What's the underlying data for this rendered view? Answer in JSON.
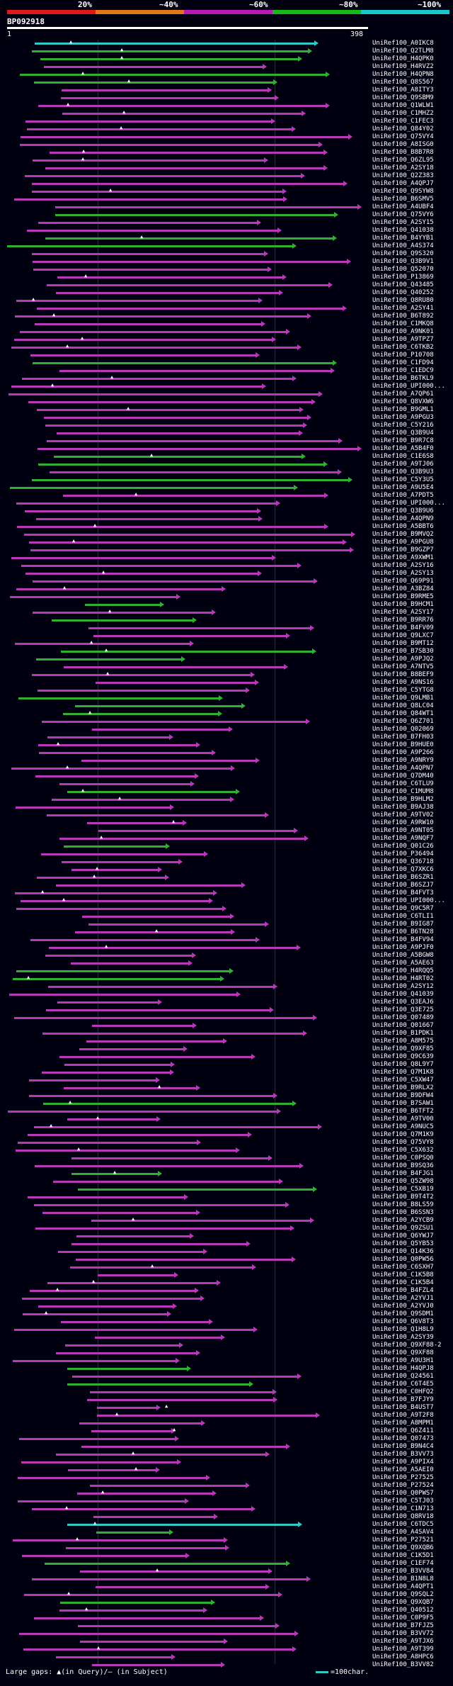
{
  "legend": {
    "labels": [
      "20%",
      "~40%",
      "~60%",
      "~80%",
      "~100%"
    ],
    "colors": [
      "#e01818",
      "#e07818",
      "#b818b8",
      "#18b818",
      "#18c8c8"
    ]
  },
  "query": {
    "id": "BP092918",
    "start": "1",
    "end": "398"
  },
  "footer": {
    "gaps_text": "Large gaps: ▲(in Query)/– (in Subject)",
    "scale_text": "=100char."
  },
  "hits": [
    {
      "label": "UniRef100_A0IKC8",
      "c": "cyan"
    },
    {
      "label": "UniRef100_Q2TLM8",
      "c": "green"
    },
    {
      "label": "UniRef100_H4QPK0",
      "c": "green"
    },
    {
      "label": "UniRef100_H4RVZ2",
      "c": "magenta"
    },
    {
      "label": "UniRef100_H4QPN8",
      "c": "green"
    },
    {
      "label": "UniRef100_Q8S567",
      "c": "green"
    },
    {
      "label": "UniRef100_A8ITY3",
      "c": "magenta"
    },
    {
      "label": "UniRef100_Q9SBM9",
      "c": "magenta"
    },
    {
      "label": "UniRef100_Q1WLW1",
      "c": "magenta"
    },
    {
      "label": "UniRef100_C1MHZ2",
      "c": "magenta"
    },
    {
      "label": "UniRef100_C1FEC3",
      "c": "magenta"
    },
    {
      "label": "UniRef100_Q84Y02",
      "c": "magenta"
    },
    {
      "label": "UniRef100_Q75VY4",
      "c": "magenta"
    },
    {
      "label": "UniRef100_A8ISG0",
      "c": "magenta"
    },
    {
      "label": "UniRef100_B8B7R8",
      "c": "magenta"
    },
    {
      "label": "UniRef100_Q6ZL95",
      "c": "magenta"
    },
    {
      "label": "UniRef100_A2SY18",
      "c": "magenta"
    },
    {
      "label": "UniRef100_Q2Z383",
      "c": "magenta"
    },
    {
      "label": "UniRef100_A4QPJ7",
      "c": "magenta"
    },
    {
      "label": "UniRef100_Q9SYW8",
      "c": "magenta"
    },
    {
      "label": "UniRef100_B6SMV5",
      "c": "magenta"
    },
    {
      "label": "UniRef100_A4UBF4",
      "c": "magenta"
    },
    {
      "label": "UniRef100_Q75VY6",
      "c": "green"
    },
    {
      "label": "UniRef100_A2SY15",
      "c": "magenta"
    },
    {
      "label": "UniRef100_Q41038",
      "c": "magenta"
    },
    {
      "label": "UniRef100_B4YYB1",
      "c": "green"
    },
    {
      "label": "UniRef100_A4S374",
      "c": "green"
    },
    {
      "label": "UniRef100_Q9S320",
      "c": "magenta"
    },
    {
      "label": "UniRef100_Q3B9V1",
      "c": "magenta"
    },
    {
      "label": "UniRef100_Q52070",
      "c": "magenta"
    },
    {
      "label": "UniRef100_P13869",
      "c": "magenta"
    },
    {
      "label": "UniRef100_Q43485",
      "c": "magenta"
    },
    {
      "label": "UniRef100_Q40252",
      "c": "magenta"
    },
    {
      "label": "UniRef100_Q8RU80",
      "c": "magenta"
    },
    {
      "label": "UniRef100_A2SY41",
      "c": "magenta"
    },
    {
      "label": "UniRef100_B6T892",
      "c": "magenta"
    },
    {
      "label": "UniRef100_C1MKQ8",
      "c": "magenta"
    },
    {
      "label": "UniRef100_A9NK01",
      "c": "magenta"
    },
    {
      "label": "UniRef100_A9TPZ7",
      "c": "magenta"
    },
    {
      "label": "UniRef100_C6TKB2",
      "c": "magenta"
    },
    {
      "label": "UniRef100_P10708",
      "c": "magenta"
    },
    {
      "label": "UniRef100_C1FD94",
      "c": "green"
    },
    {
      "label": "UniRef100_C1EDC9",
      "c": "magenta"
    },
    {
      "label": "UniRef100_B6TKL9",
      "c": "magenta"
    },
    {
      "label": "UniRef100_UPI000...",
      "c": "magenta"
    },
    {
      "label": "UniRef100_A7QP61",
      "c": "magenta"
    },
    {
      "label": "UniRef100_Q8VXW6",
      "c": "magenta"
    },
    {
      "label": "UniRef100_B9GML1",
      "c": "magenta"
    },
    {
      "label": "UniRef100_A9PGU3",
      "c": "magenta"
    },
    {
      "label": "UniRef100_C5Y216",
      "c": "magenta"
    },
    {
      "label": "UniRef100_Q3B9U4",
      "c": "magenta"
    },
    {
      "label": "UniRef100_B9R7C8",
      "c": "magenta"
    },
    {
      "label": "UniRef100_A5B4F0",
      "c": "magenta"
    },
    {
      "label": "UniRef100_C1E6S8",
      "c": "green"
    },
    {
      "label": "UniRef100_A9TJ06",
      "c": "green"
    },
    {
      "label": "UniRef100_Q3B9U3",
      "c": "magenta"
    },
    {
      "label": "UniRef100_C5Y3U5",
      "c": "green"
    },
    {
      "label": "UniRef100_A9U5E4",
      "c": "green"
    },
    {
      "label": "UniRef100_A7PDT5",
      "c": "magenta"
    },
    {
      "label": "UniRef100_UPI000...",
      "c": "magenta"
    },
    {
      "label": "UniRef100_Q3B9U6",
      "c": "magenta"
    },
    {
      "label": "UniRef100_A4QPN9",
      "c": "magenta"
    },
    {
      "label": "UniRef100_A5BBT6",
      "c": "magenta"
    },
    {
      "label": "UniRef100_B9MVQ2",
      "c": "magenta"
    },
    {
      "label": "UniRef100_A9PGU8",
      "c": "magenta"
    },
    {
      "label": "UniRef100_B9GZP7",
      "c": "magenta"
    },
    {
      "label": "UniRef100_A9XWM1",
      "c": "magenta"
    },
    {
      "label": "UniRef100_A2SY16",
      "c": "magenta"
    },
    {
      "label": "UniRef100_A2SY13",
      "c": "magenta"
    },
    {
      "label": "UniRef100_Q69P91",
      "c": "magenta"
    },
    {
      "label": "UniRef100_A3BZ84",
      "c": "magenta"
    },
    {
      "label": "UniRef100_B9RME5",
      "c": "magenta"
    },
    {
      "label": "UniRef100_B9HCM1",
      "c": "green"
    },
    {
      "label": "UniRef100_A2SY17",
      "c": "magenta"
    },
    {
      "label": "UniRef100_B9RR76",
      "c": "green"
    },
    {
      "label": "UniRef100_B4FV09",
      "c": "magenta"
    },
    {
      "label": "UniRef100_Q9LXC7",
      "c": "magenta"
    },
    {
      "label": "UniRef100_B9MT12",
      "c": "magenta"
    },
    {
      "label": "UniRef100_B7SB30",
      "c": "green"
    },
    {
      "label": "UniRef100_A9PJQ2",
      "c": "green"
    },
    {
      "label": "UniRef100_A7NTV5",
      "c": "magenta"
    },
    {
      "label": "UniRef100_B8BEF9",
      "c": "magenta"
    },
    {
      "label": "UniRef100_A9NS16",
      "c": "magenta"
    },
    {
      "label": "UniRef100_C5YTG8",
      "c": "magenta"
    },
    {
      "label": "UniRef100_Q9LMB1",
      "c": "green"
    },
    {
      "label": "UniRef100_Q8LC04",
      "c": "green"
    },
    {
      "label": "UniRef100_Q84WT1",
      "c": "green"
    },
    {
      "label": "UniRef100_Q6Z701",
      "c": "magenta"
    },
    {
      "label": "UniRef100_Q02069",
      "c": "magenta"
    },
    {
      "label": "UniRef100_B7FH03",
      "c": "magenta"
    },
    {
      "label": "UniRef100_B9HUE0",
      "c": "magenta"
    },
    {
      "label": "UniRef100_A9P266",
      "c": "magenta"
    },
    {
      "label": "UniRef100_A9NRY9",
      "c": "magenta"
    },
    {
      "label": "UniRef100_A4QPN7",
      "c": "magenta"
    },
    {
      "label": "UniRef100_Q7DM40",
      "c": "magenta"
    },
    {
      "label": "UniRef100_C6TLU9",
      "c": "magenta"
    },
    {
      "label": "UniRef100_C1MUM8",
      "c": "green"
    },
    {
      "label": "UniRef100_B9HLM2",
      "c": "magenta"
    },
    {
      "label": "UniRef100_B9AJ38",
      "c": "magenta"
    },
    {
      "label": "UniRef100_A9TV02",
      "c": "magenta"
    },
    {
      "label": "UniRef100_A9RW10",
      "c": "magenta"
    },
    {
      "label": "UniRef100_A9NT05",
      "c": "magenta"
    },
    {
      "label": "UniRef100_A9NQF7",
      "c": "magenta"
    },
    {
      "label": "UniRef100_Q01C26",
      "c": "green"
    },
    {
      "label": "UniRef100_P36494",
      "c": "magenta"
    },
    {
      "label": "UniRef100_Q36718",
      "c": "magenta"
    },
    {
      "label": "UniRef100_Q7XKC6",
      "c": "magenta"
    },
    {
      "label": "UniRef100_B6SZR1",
      "c": "magenta"
    },
    {
      "label": "UniRef100_B6SZJ7",
      "c": "magenta"
    },
    {
      "label": "UniRef100_B4FVT3",
      "c": "magenta"
    },
    {
      "label": "UniRef100_UPI000...",
      "c": "magenta"
    },
    {
      "label": "UniRef100_Q9C5R7",
      "c": "magenta"
    },
    {
      "label": "UniRef100_C6TLI1",
      "c": "magenta"
    },
    {
      "label": "UniRef100_B9IG87",
      "c": "magenta"
    },
    {
      "label": "UniRef100_B6TN28",
      "c": "magenta"
    },
    {
      "label": "UniRef100_B4FV94",
      "c": "magenta"
    },
    {
      "label": "UniRef100_A9PJF0",
      "c": "magenta"
    },
    {
      "label": "UniRef100_A5BGW8",
      "c": "magenta"
    },
    {
      "label": "UniRef100_A5AE63",
      "c": "magenta"
    },
    {
      "label": "UniRef100_H4RQQ5",
      "c": "green"
    },
    {
      "label": "UniRef100_H4RT02",
      "c": "green"
    },
    {
      "label": "UniRef100_A2SY12",
      "c": "magenta"
    },
    {
      "label": "UniRef100_Q41039",
      "c": "magenta"
    },
    {
      "label": "UniRef100_Q3EAJ6",
      "c": "magenta"
    },
    {
      "label": "UniRef100_Q3E725",
      "c": "magenta"
    },
    {
      "label": "UniRef100_Q07489",
      "c": "magenta"
    },
    {
      "label": "UniRef100_Q01667",
      "c": "magenta"
    },
    {
      "label": "UniRef100_B1PDK1",
      "c": "magenta"
    },
    {
      "label": "UniRef100_A8M575",
      "c": "magenta"
    },
    {
      "label": "UniRef100_Q9XF85",
      "c": "magenta"
    },
    {
      "label": "UniRef100_Q9C639",
      "c": "magenta"
    },
    {
      "label": "UniRef100_Q8L9Y7",
      "c": "magenta"
    },
    {
      "label": "UniRef100_Q7M1K8",
      "c": "magenta"
    },
    {
      "label": "UniRef100_C5XW47",
      "c": "magenta"
    },
    {
      "label": "UniRef100_B9RLX2",
      "c": "magenta"
    },
    {
      "label": "UniRef100_B9DFW4",
      "c": "magenta"
    },
    {
      "label": "UniRef100_B7SAW1",
      "c": "green"
    },
    {
      "label": "UniRef100_B6TFT2",
      "c": "magenta"
    },
    {
      "label": "UniRef100_A9TV00",
      "c": "magenta"
    },
    {
      "label": "UniRef100_A9NUC5",
      "c": "magenta"
    },
    {
      "label": "UniRef100_Q7M1K9",
      "c": "magenta"
    },
    {
      "label": "UniRef100_Q75VY8",
      "c": "magenta"
    },
    {
      "label": "UniRef100_C5X632",
      "c": "magenta"
    },
    {
      "label": "UniRef100_C0PSQ0",
      "c": "magenta"
    },
    {
      "label": "UniRef100_B9SQ36",
      "c": "magenta"
    },
    {
      "label": "UniRef100_B4FJG1",
      "c": "green"
    },
    {
      "label": "UniRef100_Q5ZW98",
      "c": "magenta"
    },
    {
      "label": "UniRef100_C5XB19",
      "c": "green"
    },
    {
      "label": "UniRef100_B9T4T2",
      "c": "magenta"
    },
    {
      "label": "UniRef100_B8LS59",
      "c": "magenta"
    },
    {
      "label": "UniRef100_B6SSN3",
      "c": "magenta"
    },
    {
      "label": "UniRef100_A2YCB9",
      "c": "magenta"
    },
    {
      "label": "UniRef100_Q9ZSU1",
      "c": "magenta"
    },
    {
      "label": "UniRef100_Q6YWJ7",
      "c": "magenta"
    },
    {
      "label": "UniRef100_Q5YB53",
      "c": "magenta"
    },
    {
      "label": "UniRef100_Q14K36",
      "c": "magenta"
    },
    {
      "label": "UniRef100_Q0PW56",
      "c": "magenta"
    },
    {
      "label": "UniRef100_C6SXH7",
      "c": "magenta"
    },
    {
      "label": "UniRef100_C1K5B8",
      "c": "magenta"
    },
    {
      "label": "UniRef100_C1K5B4",
      "c": "magenta"
    },
    {
      "label": "UniRef100_B4FZL4",
      "c": "magenta"
    },
    {
      "label": "UniRef100_A2YVJ1",
      "c": "magenta"
    },
    {
      "label": "UniRef100_A2YVJ0",
      "c": "magenta"
    },
    {
      "label": "UniRef100_Q9SDM1",
      "c": "magenta"
    },
    {
      "label": "UniRef100_Q6V8T3",
      "c": "magenta"
    },
    {
      "label": "UniRef100_Q1H8L9",
      "c": "magenta"
    },
    {
      "label": "UniRef100_A2SY39",
      "c": "magenta"
    },
    {
      "label": "UniRef100_Q9XF88-2",
      "c": "magenta"
    },
    {
      "label": "UniRef100_Q9XF88",
      "c": "magenta"
    },
    {
      "label": "UniRef100_A9U3H1",
      "c": "magenta"
    },
    {
      "label": "UniRef100_H4QPJ8",
      "c": "green"
    },
    {
      "label": "UniRef100_Q24561",
      "c": "magenta"
    },
    {
      "label": "UniRef100_C6T4E5",
      "c": "green"
    },
    {
      "label": "UniRef100_C0HFQ2",
      "c": "magenta"
    },
    {
      "label": "UniRef100_B7FJY9",
      "c": "magenta"
    },
    {
      "label": "UniRef100_B4UST7",
      "c": "magenta"
    },
    {
      "label": "UniRef100_A9T2F8",
      "c": "magenta"
    },
    {
      "label": "UniRef100_A8MPM1",
      "c": "magenta"
    },
    {
      "label": "UniRef100_Q6Z411",
      "c": "magenta"
    },
    {
      "label": "UniRef100_Q07473",
      "c": "magenta"
    },
    {
      "label": "UniRef100_B9N4C4",
      "c": "magenta"
    },
    {
      "label": "UniRef100_B3VV73",
      "c": "magenta"
    },
    {
      "label": "UniRef100_A9PIX4",
      "c": "magenta"
    },
    {
      "label": "UniRef100_A5AEI0",
      "c": "magenta"
    },
    {
      "label": "UniRef100_P27525",
      "c": "magenta"
    },
    {
      "label": "UniRef100_P27524",
      "c": "magenta"
    },
    {
      "label": "UniRef100_Q0PWS7",
      "c": "magenta"
    },
    {
      "label": "UniRef100_C5TJ03",
      "c": "magenta"
    },
    {
      "label": "UniRef100_C1N713",
      "c": "magenta"
    },
    {
      "label": "UniRef100_Q8RV18",
      "c": "magenta"
    },
    {
      "label": "UniRef100_C6TDC5",
      "c": "cyan"
    },
    {
      "label": "UniRef100_A4SAV4",
      "c": "green"
    },
    {
      "label": "UniRef100_P27521",
      "c": "magenta"
    },
    {
      "label": "UniRef100_Q9XQB6",
      "c": "magenta"
    },
    {
      "label": "UniRef100_C1K5D1",
      "c": "magenta"
    },
    {
      "label": "UniRef100_C1EF74",
      "c": "green"
    },
    {
      "label": "UniRef100_B3VV84",
      "c": "magenta"
    },
    {
      "label": "UniRef100_B1N8L8",
      "c": "magenta"
    },
    {
      "label": "UniRef100_A4QPT1",
      "c": "magenta"
    },
    {
      "label": "UniRef100_Q9SQL2",
      "c": "magenta"
    },
    {
      "label": "UniRef100_Q9XQB7",
      "c": "green"
    },
    {
      "label": "UniRef100_Q40512",
      "c": "magenta"
    },
    {
      "label": "UniRef100_C0P9F5",
      "c": "magenta"
    },
    {
      "label": "UniRef100_B7FJZ5",
      "c": "magenta"
    },
    {
      "label": "UniRef100_B3VV72",
      "c": "magenta"
    },
    {
      "label": "UniRef100_A9TJX6",
      "c": "magenta"
    },
    {
      "label": "UniRef100_A9T399",
      "c": "magenta"
    },
    {
      "label": "UniRef100_A8HPC6",
      "c": "magenta"
    },
    {
      "label": "UniRef100_B3VV82",
      "c": "magenta"
    }
  ]
}
